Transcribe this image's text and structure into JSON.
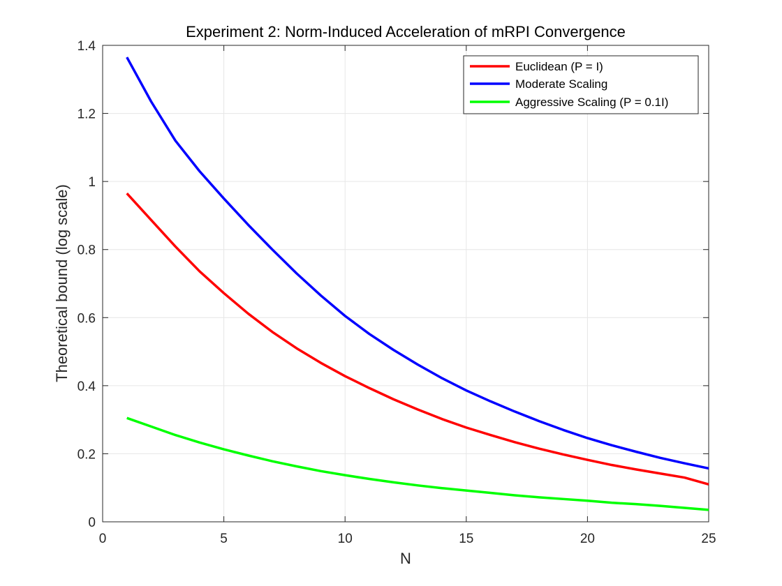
{
  "chart_data": {
    "type": "line",
    "title": "Experiment 2: Norm-Induced Acceleration of mRPI Convergence",
    "xlabel": "N",
    "ylabel": "Theoretical bound (log scale)",
    "xlim": [
      0,
      25
    ],
    "ylim": [
      0,
      1.4
    ],
    "xticks": [
      0,
      5,
      10,
      15,
      20,
      25
    ],
    "yticks": [
      0,
      0.2,
      0.4,
      0.6,
      0.8,
      1,
      1.2,
      1.4
    ],
    "xtick_labels": [
      "0",
      "5",
      "10",
      "15",
      "20",
      "25"
    ],
    "ytick_labels": [
      "0",
      "0.2",
      "0.4",
      "0.6",
      "0.8",
      "1",
      "1.2",
      "1.4"
    ],
    "grid": true,
    "legend_position": "top-right",
    "x": [
      1,
      2,
      3,
      4,
      5,
      6,
      7,
      8,
      9,
      10,
      11,
      12,
      13,
      14,
      15,
      16,
      17,
      18,
      19,
      20,
      21,
      22,
      23,
      24,
      25
    ],
    "series": [
      {
        "name": "Euclidean (P = I)",
        "color": "#ff0000",
        "values": [
          0.965,
          0.887,
          0.809,
          0.736,
          0.672,
          0.612,
          0.558,
          0.51,
          0.467,
          0.428,
          0.393,
          0.36,
          0.33,
          0.302,
          0.277,
          0.255,
          0.234,
          0.215,
          0.198,
          0.182,
          0.167,
          0.154,
          0.142,
          0.13,
          0.11
        ]
      },
      {
        "name": "Moderate Scaling",
        "color": "#0000ff",
        "values": [
          1.365,
          1.235,
          1.12,
          1.03,
          0.95,
          0.873,
          0.8,
          0.73,
          0.665,
          0.605,
          0.552,
          0.505,
          0.462,
          0.422,
          0.386,
          0.354,
          0.324,
          0.296,
          0.27,
          0.246,
          0.225,
          0.206,
          0.188,
          0.172,
          0.157
        ]
      },
      {
        "name": "Aggressive Scaling (P = 0.1I)",
        "color": "#00ff00",
        "values": [
          0.305,
          0.28,
          0.255,
          0.233,
          0.213,
          0.195,
          0.178,
          0.163,
          0.149,
          0.137,
          0.126,
          0.116,
          0.107,
          0.099,
          0.092,
          0.085,
          0.078,
          0.072,
          0.067,
          0.062,
          0.056,
          0.052,
          0.047,
          0.041,
          0.035
        ]
      }
    ]
  }
}
